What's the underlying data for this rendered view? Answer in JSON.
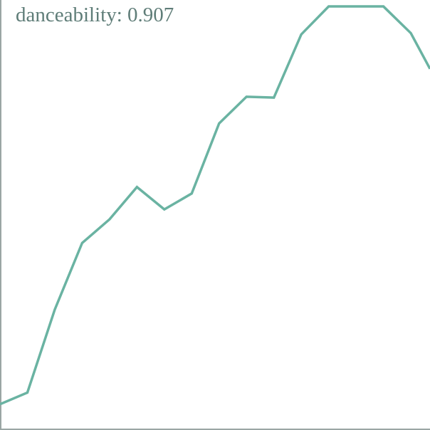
{
  "colors": {
    "series": "#6ab3a2",
    "axis": "#9aa6a4",
    "label": "#5f7d78",
    "background": "#ffffff"
  },
  "chart_data": {
    "type": "line",
    "label": "danceability: 0.907",
    "xlabel": "",
    "ylabel": "",
    "grid": false,
    "legend": "none",
    "xlim": [
      0,
      15.7
    ],
    "ylim": [
      0,
      1
    ],
    "x": [
      0,
      1,
      2,
      3,
      4,
      5,
      6,
      7,
      8,
      9,
      10,
      11,
      12,
      13,
      14,
      15,
      15.7
    ],
    "series": [
      {
        "values": [
          0.06,
          0.087,
          0.28,
          0.435,
          0.49,
          0.565,
          0.513,
          0.55,
          0.713,
          0.775,
          0.773,
          0.92,
          0.985,
          0.985,
          0.985,
          0.923,
          0.84
        ]
      }
    ]
  }
}
